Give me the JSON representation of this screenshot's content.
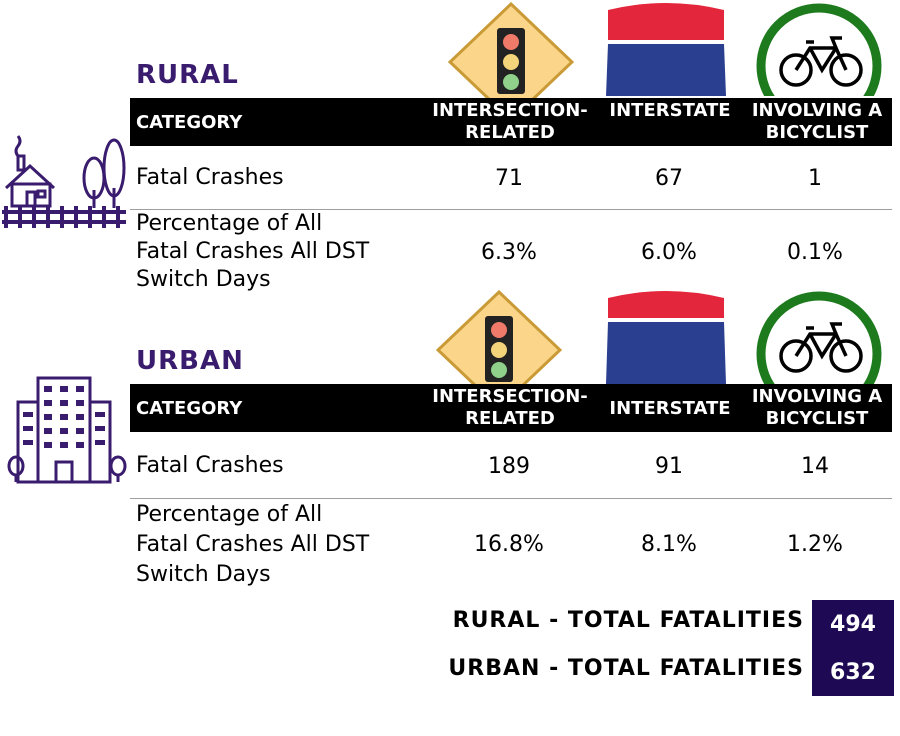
{
  "colors": {
    "accent_purple": "#3a1c6e",
    "total_box": "#1e0a54",
    "header_black": "#000000",
    "interstate_red": "#e3263b",
    "interstate_blue": "#2a3f8f",
    "bicycle_ring": "#1d7a1d",
    "sign_yellow": "#fbd68a"
  },
  "icons": {
    "rural_building": "rural-house-icon",
    "urban_building": "city-building-icon",
    "intersection": "traffic-light-sign-icon",
    "interstate": "interstate-shield-icon",
    "bicycle": "bicycle-sign-icon"
  },
  "sections": [
    {
      "title": "RURAL",
      "header": {
        "category": "CATEGORY",
        "col1": [
          "INTERSECTION-",
          "RELATED"
        ],
        "col2": "INTERSTATE",
        "col3": [
          "INVOLVING A",
          "BICYCLIST"
        ]
      },
      "rows": [
        {
          "label": [
            "Fatal Crashes"
          ],
          "values": [
            "71",
            "67",
            "1"
          ]
        },
        {
          "label": [
            "Percentage of All",
            "Fatal Crashes All DST",
            "Switch Days"
          ],
          "values": [
            "6.3%",
            "6.0%",
            "0.1%"
          ]
        }
      ]
    },
    {
      "title": "URBAN",
      "header": {
        "category": "CATEGORY",
        "col1": [
          "INTERSECTION-",
          "RELATED"
        ],
        "col2": "INTERSTATE",
        "col3": [
          "INVOLVING A",
          "BICYCLIST"
        ]
      },
      "rows": [
        {
          "label": [
            "Fatal Crashes"
          ],
          "values": [
            "189",
            "91",
            "14"
          ]
        },
        {
          "label": [
            "Percentage of All",
            "Fatal Crashes All DST",
            "Switch Days"
          ],
          "values": [
            "16.8%",
            "8.1%",
            "1.2%"
          ]
        }
      ]
    }
  ],
  "totals": [
    {
      "label": "RURAL - TOTAL FATALITIES",
      "value": "494"
    },
    {
      "label": "URBAN - TOTAL FATALITIES",
      "value": "632"
    }
  ]
}
